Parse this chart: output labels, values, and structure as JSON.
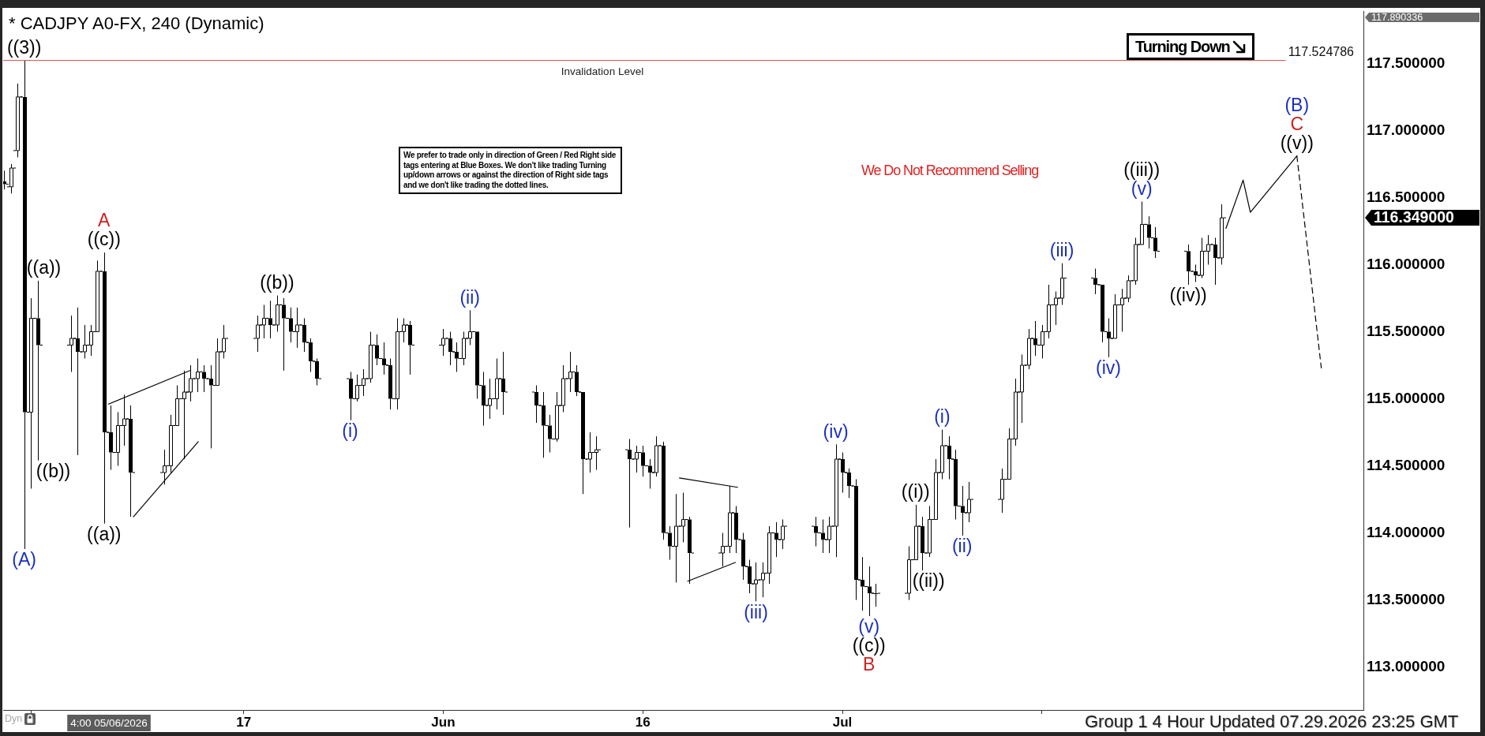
{
  "chart_data": {
    "type": "candlestick",
    "title": "* CADJPY A0-FX, 240 (Dynamic)",
    "color": "#000000",
    "x": [
      "2026-04-29T00:00",
      "2026-04-29T12:00",
      "2026-04-30T00:00",
      "2026-04-30T12:00",
      "2026-05-01T00:00",
      "2026-05-01T12:00",
      "2026-05-04T00:00",
      "2026-05-04T12:00",
      "2026-05-05T00:00",
      "2026-05-05T12:00",
      "2026-05-06T00:00",
      "2026-05-06T12:00",
      "2026-05-07T00:00",
      "2026-05-07T12:00",
      "2026-05-08T00:00",
      "2026-05-08T12:00",
      "2026-05-11T00:00",
      "2026-05-11T12:00",
      "2026-05-12T00:00",
      "2026-05-12T12:00",
      "2026-05-13T00:00",
      "2026-05-13T12:00",
      "2026-05-14T00:00",
      "2026-05-14T12:00",
      "2026-05-15T00:00",
      "2026-05-15T12:00",
      "2026-05-18T00:00",
      "2026-05-18T12:00",
      "2026-05-19T00:00",
      "2026-05-19T12:00",
      "2026-05-20T00:00",
      "2026-05-20T12:00",
      "2026-05-21T00:00",
      "2026-05-21T12:00",
      "2026-05-22T00:00",
      "2026-05-22T12:00",
      "2026-05-25T00:00",
      "2026-05-25T12:00",
      "2026-05-26T00:00",
      "2026-05-26T12:00",
      "2026-05-27T00:00",
      "2026-05-27T12:00",
      "2026-05-28T00:00",
      "2026-05-28T12:00",
      "2026-05-29T00:00",
      "2026-05-29T12:00",
      "2026-06-01T00:00",
      "2026-06-01T12:00",
      "2026-06-02T00:00",
      "2026-06-02T12:00",
      "2026-06-03T00:00",
      "2026-06-03T12:00",
      "2026-06-04T00:00",
      "2026-06-04T12:00",
      "2026-06-05T00:00",
      "2026-06-05T12:00",
      "2026-06-08T00:00",
      "2026-06-08T12:00",
      "2026-06-09T00:00",
      "2026-06-09T12:00",
      "2026-06-10T00:00",
      "2026-06-10T12:00",
      "2026-06-11T00:00",
      "2026-06-11T12:00",
      "2026-06-12T00:00",
      "2026-06-12T12:00",
      "2026-06-15T00:00",
      "2026-06-15T12:00",
      "2026-06-16T00:00",
      "2026-06-16T12:00",
      "2026-06-17T00:00",
      "2026-06-17T12:00",
      "2026-06-18T00:00",
      "2026-06-18T12:00",
      "2026-06-19T00:00",
      "2026-06-19T12:00",
      "2026-06-22T00:00",
      "2026-06-22T12:00",
      "2026-06-23T00:00",
      "2026-06-23T12:00",
      "2026-06-24T00:00",
      "2026-06-24T12:00",
      "2026-06-25T00:00",
      "2026-06-25T12:00",
      "2026-06-26T00:00",
      "2026-06-26T12:00",
      "2026-06-29T00:00",
      "2026-06-29T12:00",
      "2026-06-30T00:00",
      "2026-06-30T12:00",
      "2026-07-01T00:00",
      "2026-07-01T12:00",
      "2026-07-02T00:00",
      "2026-07-02T12:00",
      "2026-07-03T00:00",
      "2026-07-03T12:00",
      "2026-07-06T00:00",
      "2026-07-06T12:00",
      "2026-07-07T00:00",
      "2026-07-07T12:00",
      "2026-07-08T00:00",
      "2026-07-08T12:00",
      "2026-07-09T00:00",
      "2026-07-09T12:00",
      "2026-07-10T00:00",
      "2026-07-10T12:00",
      "2026-07-13T00:00",
      "2026-07-13T12:00",
      "2026-07-14T00:00",
      "2026-07-14T12:00",
      "2026-07-15T00:00",
      "2026-07-15T12:00",
      "2026-07-16T00:00",
      "2026-07-16T12:00",
      "2026-07-17T00:00",
      "2026-07-17T12:00",
      "2026-07-20T00:00",
      "2026-07-20T12:00",
      "2026-07-21T00:00",
      "2026-07-21T12:00",
      "2026-07-22T00:00",
      "2026-07-22T12:00",
      "2026-07-23T00:00",
      "2026-07-23T12:00",
      "2026-07-24T00:00",
      "2026-07-24T12:00",
      "2026-07-27T00:00",
      "2026-07-27T12:00",
      "2026-07-28T00:00",
      "2026-07-28T12:00",
      "2026-07-29T00:00",
      "2026-07-29T12:00"
    ],
    "ohlc": [
      [
        116.62,
        116.7,
        116.56,
        116.6
      ],
      [
        116.58,
        116.75,
        116.53,
        116.72
      ],
      [
        116.85,
        117.35,
        116.8,
        117.25
      ],
      [
        117.25,
        117.52,
        113.88,
        114.9
      ],
      [
        114.9,
        115.75,
        114.33,
        115.6
      ],
      [
        115.6,
        115.88,
        114.54,
        115.4
      ],
      [
        115.4,
        115.62,
        115.2,
        115.45
      ],
      [
        115.45,
        115.68,
        114.58,
        115.35
      ],
      [
        115.35,
        115.55,
        115.3,
        115.4
      ],
      [
        115.4,
        115.55,
        115.32,
        115.5
      ],
      [
        115.5,
        116.03,
        115.5,
        115.95
      ],
      [
        115.95,
        116.09,
        114.07,
        114.75
      ],
      [
        114.75,
        114.95,
        114.47,
        114.6
      ],
      [
        114.6,
        114.9,
        114.5,
        114.8
      ],
      [
        114.8,
        115.03,
        114.65,
        114.85
      ],
      [
        114.85,
        114.95,
        114.12,
        114.45
      ],
      [
        114.45,
        114.62,
        114.36,
        114.5
      ],
      [
        114.5,
        114.88,
        114.45,
        114.8
      ],
      [
        114.8,
        115.1,
        114.8,
        115.0
      ],
      [
        115.0,
        115.21,
        114.55,
        115.05
      ],
      [
        115.05,
        115.25,
        114.98,
        115.15
      ],
      [
        115.15,
        115.3,
        115.05,
        115.2
      ],
      [
        115.2,
        115.25,
        115.05,
        115.15
      ],
      [
        115.15,
        115.25,
        114.63,
        115.1
      ],
      [
        115.1,
        115.45,
        115.1,
        115.35
      ],
      [
        115.35,
        115.55,
        115.3,
        115.45
      ],
      [
        115.45,
        115.62,
        115.35,
        115.55
      ],
      [
        115.55,
        115.7,
        115.45,
        115.6
      ],
      [
        115.6,
        115.73,
        115.45,
        115.55
      ],
      [
        115.55,
        115.77,
        115.5,
        115.7
      ],
      [
        115.7,
        115.75,
        115.21,
        115.6
      ],
      [
        115.6,
        115.68,
        115.42,
        115.5
      ],
      [
        115.5,
        115.68,
        115.38,
        115.55
      ],
      [
        115.55,
        115.6,
        115.35,
        115.42
      ],
      [
        115.42,
        115.45,
        115.2,
        115.28
      ],
      [
        115.28,
        115.3,
        115.1,
        115.15
      ],
      [
        115.15,
        115.2,
        114.84,
        115.0
      ],
      [
        115.0,
        115.18,
        114.98,
        115.1
      ],
      [
        115.1,
        115.22,
        115.02,
        115.15
      ],
      [
        115.15,
        115.5,
        115.12,
        115.4
      ],
      [
        115.4,
        115.48,
        115.25,
        115.3
      ],
      [
        115.3,
        115.42,
        115.18,
        115.25
      ],
      [
        115.25,
        115.3,
        114.92,
        115.0
      ],
      [
        115.0,
        115.6,
        114.92,
        115.5
      ],
      [
        115.5,
        115.6,
        115.42,
        115.55
      ],
      [
        115.55,
        115.58,
        115.18,
        115.4
      ],
      [
        115.4,
        115.52,
        115.32,
        115.45
      ],
      [
        115.45,
        115.5,
        115.25,
        115.35
      ],
      [
        115.35,
        115.42,
        115.2,
        115.3
      ],
      [
        115.3,
        115.5,
        115.25,
        115.45
      ],
      [
        115.45,
        115.66,
        115.4,
        115.5
      ],
      [
        115.5,
        115.5,
        115.0,
        115.1
      ],
      [
        115.1,
        115.2,
        114.8,
        114.95
      ],
      [
        114.95,
        115.15,
        114.85,
        115.0
      ],
      [
        115.0,
        115.3,
        114.92,
        115.15
      ],
      [
        115.15,
        115.35,
        114.88,
        115.05
      ],
      [
        115.05,
        115.1,
        114.82,
        114.95
      ],
      [
        114.95,
        115.05,
        114.56,
        114.8
      ],
      [
        114.8,
        114.88,
        114.6,
        114.7
      ],
      [
        114.7,
        115.05,
        114.68,
        114.95
      ],
      [
        114.95,
        115.25,
        114.9,
        115.15
      ],
      [
        115.15,
        115.35,
        115.05,
        115.2
      ],
      [
        115.2,
        115.25,
        115.02,
        115.05
      ],
      [
        115.05,
        115.05,
        114.29,
        114.55
      ],
      [
        114.55,
        114.75,
        114.45,
        114.6
      ],
      [
        114.6,
        114.72,
        114.47,
        114.62
      ],
      [
        114.62,
        114.7,
        114.04,
        114.55
      ],
      [
        114.55,
        114.65,
        114.45,
        114.6
      ],
      [
        114.6,
        114.65,
        114.42,
        114.5
      ],
      [
        114.5,
        114.55,
        114.33,
        114.45
      ],
      [
        114.45,
        114.72,
        114.42,
        114.65
      ],
      [
        114.65,
        114.68,
        113.95,
        114.0
      ],
      [
        114.0,
        114.05,
        113.8,
        113.9
      ],
      [
        113.9,
        114.29,
        113.63,
        114.05
      ],
      [
        114.05,
        114.3,
        113.93,
        114.1
      ],
      [
        114.1,
        114.12,
        113.62,
        113.85
      ],
      [
        113.85,
        114.0,
        113.75,
        113.9
      ],
      [
        113.9,
        114.35,
        113.85,
        114.15
      ],
      [
        114.15,
        114.2,
        113.85,
        113.95
      ],
      [
        113.95,
        114.0,
        113.65,
        113.75
      ],
      [
        113.75,
        113.8,
        113.55,
        113.62
      ],
      [
        113.62,
        113.78,
        113.49,
        113.65
      ],
      [
        113.65,
        113.78,
        113.52,
        113.7
      ],
      [
        113.7,
        114.05,
        113.62,
        114.0
      ],
      [
        114.0,
        114.08,
        113.82,
        113.95
      ],
      [
        113.95,
        114.1,
        113.88,
        114.05
      ],
      [
        114.05,
        114.12,
        113.9,
        114.0
      ],
      [
        114.0,
        114.1,
        113.85,
        113.95
      ],
      [
        113.95,
        114.12,
        113.85,
        114.05
      ],
      [
        114.05,
        114.66,
        113.82,
        114.55
      ],
      [
        114.55,
        114.6,
        114.3,
        114.45
      ],
      [
        114.45,
        114.48,
        114.26,
        114.35
      ],
      [
        114.35,
        114.4,
        113.5,
        113.65
      ],
      [
        113.65,
        113.82,
        113.42,
        113.6
      ],
      [
        113.6,
        113.75,
        113.38,
        113.55
      ],
      [
        113.55,
        113.62,
        113.45,
        113.55
      ],
      [
        113.55,
        113.9,
        113.5,
        113.8
      ],
      [
        113.8,
        114.21,
        113.8,
        114.05
      ],
      [
        114.05,
        114.12,
        113.72,
        113.85
      ],
      [
        113.85,
        114.2,
        113.82,
        114.1
      ],
      [
        114.1,
        114.55,
        114.1,
        114.45
      ],
      [
        114.45,
        114.77,
        114.4,
        114.65
      ],
      [
        114.65,
        114.72,
        114.4,
        114.55
      ],
      [
        114.55,
        114.62,
        114.1,
        114.2
      ],
      [
        114.2,
        114.35,
        113.98,
        114.15
      ],
      [
        114.15,
        114.38,
        114.08,
        114.25
      ],
      [
        114.25,
        114.48,
        114.15,
        114.4
      ],
      [
        114.4,
        114.78,
        114.4,
        114.7
      ],
      [
        114.7,
        115.15,
        114.65,
        115.05
      ],
      [
        115.05,
        115.33,
        114.82,
        115.25
      ],
      [
        115.25,
        115.52,
        115.22,
        115.45
      ],
      [
        115.45,
        115.58,
        115.32,
        115.4
      ],
      [
        115.4,
        115.55,
        115.3,
        115.5
      ],
      [
        115.5,
        115.85,
        115.45,
        115.7
      ],
      [
        115.7,
        115.8,
        115.55,
        115.75
      ],
      [
        115.75,
        116.01,
        115.7,
        115.9
      ],
      [
        115.9,
        115.97,
        115.78,
        115.85
      ],
      [
        115.85,
        115.85,
        115.42,
        115.5
      ],
      [
        115.5,
        115.6,
        115.31,
        115.45
      ],
      [
        115.45,
        115.78,
        115.45,
        115.7
      ],
      [
        115.7,
        115.82,
        115.5,
        115.75
      ],
      [
        115.75,
        115.92,
        115.72,
        115.88
      ],
      [
        115.88,
        116.2,
        115.85,
        116.15
      ],
      [
        116.15,
        116.47,
        116.15,
        116.3
      ],
      [
        116.3,
        116.36,
        116.12,
        116.2
      ],
      [
        116.2,
        116.28,
        116.05,
        116.1
      ],
      [
        116.1,
        116.15,
        115.85,
        115.95
      ],
      [
        115.95,
        116.0,
        115.87,
        115.92
      ],
      [
        115.92,
        116.2,
        115.9,
        116.1
      ],
      [
        116.1,
        116.22,
        116.0,
        116.15
      ],
      [
        116.15,
        116.2,
        115.85,
        116.05
      ],
      [
        116.05,
        116.45,
        116.0,
        116.349
      ]
    ],
    "series": [
      {
        "type": "line",
        "x": [
          "2026-07-29T20:00",
          "2026-07-31T03:00",
          "2026-07-31T16:00",
          "2026-08-04T04:00"
        ],
        "values": [
          116.27,
          116.63,
          116.39,
          116.81
        ],
        "color": "#000000",
        "line_style": "solid"
      },
      {
        "type": "line",
        "x": [
          "2026-08-04T04:00",
          "2026-08-06T00:00"
        ],
        "values": [
          116.81,
          115.23
        ],
        "color": "#000000",
        "line_style": "dashed"
      },
      {
        "type": "line",
        "x": [
          "2026-05-06T20:00",
          "2026-05-12T23:00"
        ],
        "values": [
          114.96,
          115.21
        ],
        "color": "#000000",
        "line_style": "solid"
      },
      {
        "type": "line",
        "x": [
          "2026-05-08T17:00",
          "2026-05-13T14:00"
        ],
        "values": [
          114.12,
          114.68
        ],
        "color": "#000000",
        "line_style": "solid"
      },
      {
        "type": "line",
        "x": [
          "2026-06-18T18:00",
          "2026-06-23T03:00"
        ],
        "values": [
          114.41,
          114.34
        ],
        "color": "#000000",
        "line_style": "solid"
      },
      {
        "type": "line",
        "x": [
          "2026-06-19T09:00",
          "2026-06-22T23:00"
        ],
        "values": [
          113.64,
          113.78
        ],
        "color": "#000000",
        "line_style": "solid"
      }
    ],
    "xlim": [
      "2026-04-28T22:00",
      "2026-08-09T04:00"
    ],
    "xticks": [
      {
        "value": "2026-05-01",
        "label": null
      },
      {
        "value": "2026-05-17",
        "label": "17"
      },
      {
        "value": "2026-06-01",
        "label": "Jun"
      },
      {
        "value": "2026-06-16",
        "label": "16"
      },
      {
        "value": "2026-07-01",
        "label": "Jul"
      },
      {
        "value": "2026-07-16",
        "label": null
      }
    ],
    "ylim": [
      112.68,
      117.890336
    ],
    "yticks": [
      {
        "value": 113,
        "label": "113.000000"
      },
      {
        "value": 113.5,
        "label": "113.500000"
      },
      {
        "value": 114,
        "label": "114.000000"
      },
      {
        "value": 114.5,
        "label": "114.500000"
      },
      {
        "value": 115,
        "label": "115.000000"
      },
      {
        "value": 115.5,
        "label": "115.500000"
      },
      {
        "value": 116,
        "label": "116.000000"
      },
      {
        "value": 116.5,
        "label": "116.500000"
      },
      {
        "value": 117,
        "label": "117.000000"
      },
      {
        "value": 117.5,
        "label": "117.500000"
      }
    ],
    "ref_lines": [
      {
        "axis": "y",
        "value": 117.524786,
        "label": "117.524786",
        "color": "#e05252"
      }
    ],
    "annotations": [
      {
        "text": "((3))",
        "x": "2026-04-30T12:00",
        "y": 117.52
      },
      {
        "text": "(A)",
        "x": "2026-04-30T12:00",
        "y": 113.88
      },
      {
        "text": "((a))",
        "x": "2026-05-01T12:00",
        "y": 115.88
      },
      {
        "text": "((b))",
        "x": "2026-05-01T12:00",
        "y": 114.54
      },
      {
        "text": "((c))",
        "x": "2026-05-06T12:00",
        "y": 116.09
      },
      {
        "text": "A",
        "x": "2026-05-06T12:00",
        "y": 116.09
      },
      {
        "text": "((a))",
        "x": "2026-05-06T12:00",
        "y": 114.07
      },
      {
        "text": "((b))",
        "x": "2026-05-19T12:00",
        "y": 115.77
      },
      {
        "text": "(i)",
        "x": "2026-05-25T00:00",
        "y": 114.84
      },
      {
        "text": "(ii)",
        "x": "2026-06-03T00:00",
        "y": 115.66
      },
      {
        "text": "(iii)",
        "x": "2026-06-24T12:00",
        "y": 113.49
      },
      {
        "text": "(iv)",
        "x": "2026-06-30T12:00",
        "y": 114.66
      },
      {
        "text": "(v)",
        "x": "2026-07-03T00:00",
        "y": 113.38
      },
      {
        "text": "((c))",
        "x": "2026-07-03T00:00",
        "y": 113.38
      },
      {
        "text": "B",
        "x": "2026-07-03T00:00",
        "y": 113.38
      },
      {
        "text": "((i))",
        "x": "2026-07-06T12:00",
        "y": 114.21
      },
      {
        "text": "((ii))",
        "x": "2026-07-07T00:00",
        "y": 113.72
      },
      {
        "text": "(i)",
        "x": "2026-07-08T12:00",
        "y": 114.77
      },
      {
        "text": "(ii)",
        "x": "2026-07-10T00:00",
        "y": 113.98
      },
      {
        "text": "(iii)",
        "x": "2026-07-17T12:00",
        "y": 116.01
      },
      {
        "text": "(iv)",
        "x": "2026-07-21T00:00",
        "y": 115.31
      },
      {
        "text": "(v)",
        "x": "2026-07-23T12:00",
        "y": 116.47
      },
      {
        "text": "((iii))",
        "x": "2026-07-23T12:00",
        "y": 116.47
      },
      {
        "text": "((iv))",
        "x": "2026-07-27T00:00",
        "y": 115.85
      },
      {
        "text": "((v))",
        "x": "2026-08-04T04:00",
        "y": 116.81
      },
      {
        "text": "C",
        "x": "2026-08-04T04:00",
        "y": 116.81
      },
      {
        "text": "(B)",
        "x": "2026-08-04T04:00",
        "y": 116.81
      },
      "117.890336",
      "116.349000",
      "4:00 05/06/2026",
      "We prefer to trade only in direction of Green / Red Right side tags entering at Blue Boxes. We don't like trading Turning up/down arrows or against the direction of Right side tags and we don't like trading the dotted lines.",
      "We Do Not Recommend Selling",
      "Turning Down",
      "Invalidation Level",
      "Group 1 4 Hour Updated 07.29.2026 23:25 GMT",
      "Dyn"
    ]
  }
}
